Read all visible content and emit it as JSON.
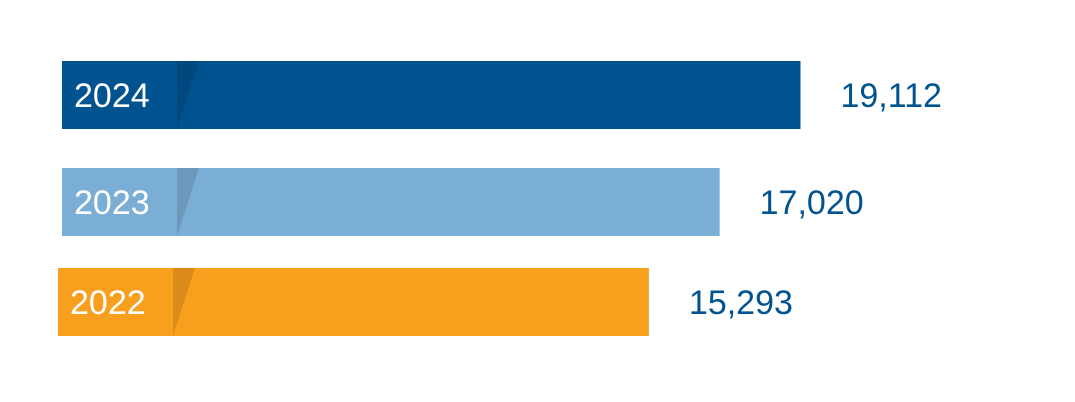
{
  "chart_data": {
    "type": "bar",
    "orientation": "horizontal",
    "title": "",
    "xlabel": "",
    "ylabel": "",
    "grid": false,
    "legend": "none",
    "categories": [
      "2024",
      "2023",
      "2022"
    ],
    "values": [
      19112,
      17020,
      15293
    ],
    "value_labels": [
      "19,112",
      "17,020",
      "15,293"
    ],
    "colors": [
      "#00538f",
      "#7aaed5",
      "#f99f1e"
    ],
    "label_color": "#00538f",
    "category_label_color": "#ffffff"
  }
}
